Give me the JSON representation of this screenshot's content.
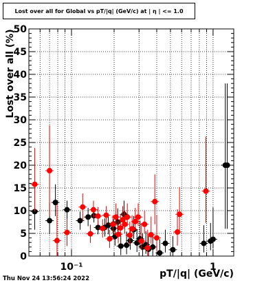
{
  "chart_data": {
    "type": "scatter",
    "title": "Lost over all for Global vs pT/|q| (GeV/c) at | η | <= 1.0",
    "xlabel": "pT/|q| (GeV/c)",
    "ylabel": "Lost over all (%)",
    "x_scale": "log",
    "xlim": [
      0.05,
      1.4
    ],
    "ylim": [
      0,
      50
    ],
    "y_ticks": [
      0,
      5,
      10,
      15,
      20,
      25,
      30,
      35,
      40,
      45,
      50
    ],
    "x_tick_labels": [
      "10⁻¹",
      "1"
    ],
    "grid": true,
    "timestamp": "Thu Nov 24 13:56:24 2022",
    "series": [
      {
        "color": "#000000",
        "points": [
          {
            "x": 0.055,
            "y": 9.8,
            "yerr_lo": 4,
            "yerr_hi": 5
          },
          {
            "x": 0.07,
            "y": 7.8,
            "yerr_lo": 3,
            "yerr_hi": 4
          },
          {
            "x": 0.077,
            "y": 11.8,
            "yerr_lo": 3,
            "yerr_hi": 4
          },
          {
            "x": 0.093,
            "y": 10.2,
            "yerr_lo": 2,
            "yerr_hi": 2
          },
          {
            "x": 0.115,
            "y": 7.8,
            "yerr_lo": 2,
            "yerr_hi": 2
          },
          {
            "x": 0.131,
            "y": 8.6,
            "yerr_lo": 2,
            "yerr_hi": 2
          },
          {
            "x": 0.144,
            "y": 8.9,
            "yerr_lo": 1.5,
            "yerr_hi": 1.5
          },
          {
            "x": 0.154,
            "y": 6.3,
            "yerr_lo": 1.5,
            "yerr_hi": 1.5
          },
          {
            "x": 0.172,
            "y": 6.3,
            "yerr_lo": 2,
            "yerr_hi": 2
          },
          {
            "x": 0.182,
            "y": 6.8,
            "yerr_lo": 2,
            "yerr_hi": 2
          },
          {
            "x": 0.198,
            "y": 6.1,
            "yerr_lo": 2,
            "yerr_hi": 2
          },
          {
            "x": 0.203,
            "y": 4.3,
            "yerr_lo": 2,
            "yerr_hi": 2
          },
          {
            "x": 0.212,
            "y": 7.5,
            "yerr_lo": 2,
            "yerr_hi": 3
          },
          {
            "x": 0.223,
            "y": 2.2,
            "yerr_lo": 2,
            "yerr_hi": 3
          },
          {
            "x": 0.235,
            "y": 9.2,
            "yerr_lo": 2,
            "yerr_hi": 3
          },
          {
            "x": 0.245,
            "y": 2.4,
            "yerr_lo": 2,
            "yerr_hi": 3
          },
          {
            "x": 0.26,
            "y": 3.4,
            "yerr_lo": 2,
            "yerr_hi": 3
          },
          {
            "x": 0.275,
            "y": 5.8,
            "yerr_lo": 2,
            "yerr_hi": 3
          },
          {
            "x": 0.29,
            "y": 2.9,
            "yerr_lo": 2,
            "yerr_hi": 3
          },
          {
            "x": 0.305,
            "y": 3.8,
            "yerr_lo": 2,
            "yerr_hi": 4
          },
          {
            "x": 0.318,
            "y": 2.0,
            "yerr_lo": 2,
            "yerr_hi": 3
          },
          {
            "x": 0.335,
            "y": 2.5,
            "yerr_lo": 2,
            "yerr_hi": 3
          },
          {
            "x": 0.35,
            "y": 1.5,
            "yerr_lo": 1.5,
            "yerr_hi": 3
          },
          {
            "x": 0.375,
            "y": 2.0,
            "yerr_lo": 2,
            "yerr_hi": 3
          },
          {
            "x": 0.42,
            "y": 0.7,
            "yerr_lo": 0.7,
            "yerr_hi": 3
          },
          {
            "x": 0.46,
            "y": 2.8,
            "yerr_lo": 2,
            "yerr_hi": 3
          },
          {
            "x": 0.52,
            "y": 1.4,
            "yerr_lo": 1.4,
            "yerr_hi": 3
          },
          {
            "x": 0.86,
            "y": 2.8,
            "yerr_lo": 2,
            "yerr_hi": 4
          },
          {
            "x": 0.96,
            "y": 3.3,
            "yerr_lo": 2,
            "yerr_hi": 4
          },
          {
            "x": 1.0,
            "y": 3.7,
            "yerr_lo": 2,
            "yerr_hi": 7
          },
          {
            "x": 1.22,
            "y": 20.0,
            "yerr_lo": 14,
            "yerr_hi": 18
          },
          {
            "x": 1.26,
            "y": 20.0,
            "yerr_lo": 14,
            "yerr_hi": 18
          }
        ]
      },
      {
        "color": "#ff0000",
        "points": [
          {
            "x": 0.055,
            "y": 15.8,
            "yerr_lo": 6,
            "yerr_hi": 8
          },
          {
            "x": 0.07,
            "y": 18.8,
            "yerr_lo": 10,
            "yerr_hi": 10
          },
          {
            "x": 0.079,
            "y": 3.4,
            "yerr_lo": 3.4,
            "yerr_hi": 8
          },
          {
            "x": 0.093,
            "y": 5.2,
            "yerr_lo": 3,
            "yerr_hi": 3
          },
          {
            "x": 0.12,
            "y": 10.8,
            "yerr_lo": 3,
            "yerr_hi": 3
          },
          {
            "x": 0.136,
            "y": 4.9,
            "yerr_lo": 2,
            "yerr_hi": 2
          },
          {
            "x": 0.143,
            "y": 10.2,
            "yerr_lo": 2,
            "yerr_hi": 2
          },
          {
            "x": 0.154,
            "y": 8.8,
            "yerr_lo": 2,
            "yerr_hi": 2
          },
          {
            "x": 0.166,
            "y": 6.1,
            "yerr_lo": 2,
            "yerr_hi": 2
          },
          {
            "x": 0.176,
            "y": 9.0,
            "yerr_lo": 2,
            "yerr_hi": 2
          },
          {
            "x": 0.186,
            "y": 3.8,
            "yerr_lo": 2,
            "yerr_hi": 2
          },
          {
            "x": 0.196,
            "y": 7.0,
            "yerr_lo": 2,
            "yerr_hi": 2
          },
          {
            "x": 0.206,
            "y": 8.6,
            "yerr_lo": 2,
            "yerr_hi": 3
          },
          {
            "x": 0.214,
            "y": 4.8,
            "yerr_lo": 2,
            "yerr_hi": 3
          },
          {
            "x": 0.222,
            "y": 6.2,
            "yerr_lo": 2,
            "yerr_hi": 3
          },
          {
            "x": 0.23,
            "y": 8.0,
            "yerr_lo": 2,
            "yerr_hi": 3
          },
          {
            "x": 0.238,
            "y": 7.0,
            "yerr_lo": 2,
            "yerr_hi": 3
          },
          {
            "x": 0.248,
            "y": 8.6,
            "yerr_lo": 2,
            "yerr_hi": 3
          },
          {
            "x": 0.258,
            "y": 4.6,
            "yerr_lo": 2,
            "yerr_hi": 3
          },
          {
            "x": 0.268,
            "y": 6.0,
            "yerr_lo": 2,
            "yerr_hi": 3
          },
          {
            "x": 0.282,
            "y": 7.6,
            "yerr_lo": 2,
            "yerr_hi": 3
          },
          {
            "x": 0.296,
            "y": 8.6,
            "yerr_lo": 2,
            "yerr_hi": 3
          },
          {
            "x": 0.312,
            "y": 3.3,
            "yerr_lo": 2,
            "yerr_hi": 4
          },
          {
            "x": 0.328,
            "y": 7.0,
            "yerr_lo": 2,
            "yerr_hi": 3
          },
          {
            "x": 0.345,
            "y": 1.8,
            "yerr_lo": 1.8,
            "yerr_hi": 4
          },
          {
            "x": 0.365,
            "y": 4.7,
            "yerr_lo": 2,
            "yerr_hi": 4
          },
          {
            "x": 0.388,
            "y": 12.0,
            "yerr_lo": 5,
            "yerr_hi": 6
          },
          {
            "x": 0.4,
            "y": 4.0,
            "yerr_lo": 3,
            "yerr_hi": 5
          },
          {
            "x": 0.56,
            "y": 5.3,
            "yerr_lo": 3,
            "yerr_hi": 5
          },
          {
            "x": 0.58,
            "y": 9.2,
            "yerr_lo": 4,
            "yerr_hi": 6
          },
          {
            "x": 0.89,
            "y": 14.3,
            "yerr_lo": 7,
            "yerr_hi": 12
          }
        ]
      }
    ]
  }
}
